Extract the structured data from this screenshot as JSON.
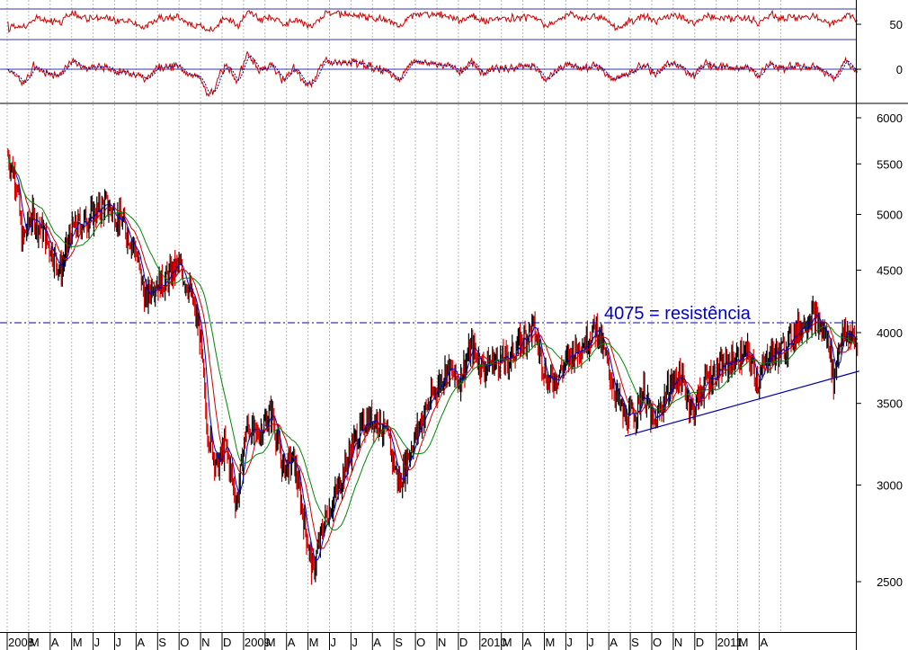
{
  "chart_data": [
    {
      "panel": "oscillator",
      "type": "line",
      "y_ticks": [
        50,
        0
      ],
      "reference_lines": [
        67,
        33,
        0
      ],
      "series": [
        {
          "color": "#cc0000"
        },
        {
          "color": "#cc0000"
        },
        {
          "color": "#0000aa"
        }
      ]
    },
    {
      "panel": "price",
      "type": "candlestick",
      "scale": "log",
      "ylim": [
        2250,
        6200
      ],
      "y_ticks": [
        6000,
        5500,
        5000,
        4500,
        4000,
        3500,
        3000,
        2500
      ],
      "x_labels": [
        "2008",
        "M",
        "A",
        "M",
        "J",
        "J",
        "A",
        "S",
        "O",
        "N",
        "D",
        "2009",
        "M",
        "A",
        "M",
        "J",
        "J",
        "A",
        "S",
        "O",
        "N",
        "D",
        "2010",
        "M",
        "A",
        "M",
        "J",
        "J",
        "A",
        "S",
        "O",
        "N",
        "D",
        "2011",
        "M",
        "A"
      ],
      "price_path": [
        [
          "2008-01-02",
          5600
        ],
        [
          "2008-01-15",
          5300
        ],
        [
          "2008-01-22",
          4750
        ],
        [
          "2008-02-05",
          5000
        ],
        [
          "2008-02-20",
          4850
        ],
        [
          "2008-03-17",
          4500
        ],
        [
          "2008-04-01",
          4850
        ],
        [
          "2008-04-20",
          4950
        ],
        [
          "2008-05-20",
          5100
        ],
        [
          "2008-06-10",
          4950
        ],
        [
          "2008-06-30",
          4700
        ],
        [
          "2008-07-15",
          4250
        ],
        [
          "2008-07-25",
          4400
        ],
        [
          "2008-08-10",
          4400
        ],
        [
          "2008-08-30",
          4550
        ],
        [
          "2008-09-15",
          4350
        ],
        [
          "2008-09-30",
          4000
        ],
        [
          "2008-10-10",
          3350
        ],
        [
          "2008-10-25",
          3100
        ],
        [
          "2008-11-05",
          3250
        ],
        [
          "2008-11-21",
          2900
        ],
        [
          "2008-12-05",
          3350
        ],
        [
          "2008-12-20",
          3300
        ],
        [
          "2009-01-10",
          3450
        ],
        [
          "2009-01-25",
          3100
        ],
        [
          "2009-02-10",
          3150
        ],
        [
          "2009-02-25",
          2800
        ],
        [
          "2009-03-09",
          2550
        ],
        [
          "2009-03-25",
          2800
        ],
        [
          "2009-04-15",
          3000
        ],
        [
          "2009-05-05",
          3250
        ],
        [
          "2009-05-25",
          3400
        ],
        [
          "2009-06-10",
          3400
        ],
        [
          "2009-06-25",
          3250
        ],
        [
          "2009-07-10",
          3000
        ],
        [
          "2009-07-20",
          3150
        ],
        [
          "2009-08-10",
          3400
        ],
        [
          "2009-08-25",
          3550
        ],
        [
          "2009-09-15",
          3750
        ],
        [
          "2009-10-01",
          3650
        ],
        [
          "2009-10-20",
          3900
        ],
        [
          "2009-11-05",
          3750
        ],
        [
          "2009-11-20",
          3800
        ],
        [
          "2009-12-10",
          3800
        ],
        [
          "2009-12-31",
          3950
        ],
        [
          "2010-01-15",
          4050
        ],
        [
          "2010-02-05",
          3650
        ],
        [
          "2010-02-20",
          3700
        ],
        [
          "2010-03-10",
          3850
        ],
        [
          "2010-04-01",
          3950
        ],
        [
          "2010-04-15",
          4050
        ],
        [
          "2010-05-07",
          3650
        ],
        [
          "2010-05-25",
          3400
        ],
        [
          "2010-06-10",
          3450
        ],
        [
          "2010-06-20",
          3600
        ],
        [
          "2010-07-05",
          3350
        ],
        [
          "2010-07-25",
          3600
        ],
        [
          "2010-08-10",
          3700
        ],
        [
          "2010-08-30",
          3450
        ],
        [
          "2010-09-15",
          3650
        ],
        [
          "2010-10-10",
          3750
        ],
        [
          "2010-10-25",
          3800
        ],
        [
          "2010-11-15",
          3850
        ],
        [
          "2010-11-30",
          3650
        ],
        [
          "2010-12-15",
          3850
        ],
        [
          "2010-12-31",
          3850
        ],
        [
          "2011-01-20",
          4000
        ],
        [
          "2011-02-15",
          4150
        ],
        [
          "2011-02-25",
          4050
        ],
        [
          "2011-03-10",
          3950
        ],
        [
          "2011-03-17",
          3650
        ],
        [
          "2011-03-25",
          3950
        ],
        [
          "2011-04-05",
          4000
        ],
        [
          "2011-04-15",
          3950
        ],
        [
          "2011-04-20",
          3900
        ]
      ],
      "moving_averages": [
        {
          "color": "#0000cc"
        },
        {
          "color": "#cc0000"
        },
        {
          "color": "#008800"
        }
      ],
      "horizontal_line": {
        "value": 4075,
        "style": "dash-dot",
        "color": "#0000aa"
      },
      "trendline": {
        "from": [
          "2010-05-25",
          3290
        ],
        "to": [
          "2011-04-22",
          3720
        ],
        "color": "#0000aa"
      },
      "annotation": {
        "text": "4075 = resistência",
        "color": "#0000cc"
      }
    }
  ]
}
